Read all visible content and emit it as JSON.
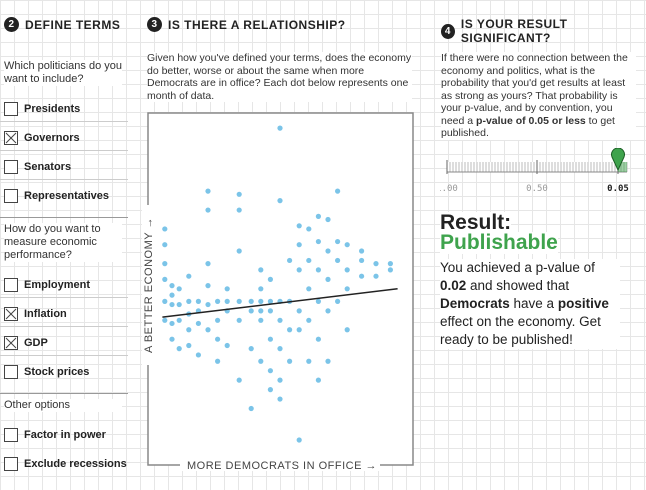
{
  "sections": [
    {
      "number": "2",
      "title": "DEFINE TERMS"
    },
    {
      "number": "3",
      "title": "IS THERE A RELATIONSHIP?"
    },
    {
      "number": "4",
      "title": "IS YOUR RESULT SIGNIFICANT?"
    }
  ],
  "define_terms": {
    "groups": [
      {
        "question": "Which politicians do you want to include?",
        "options": [
          {
            "label": "Presidents",
            "checked": false
          },
          {
            "label": "Governors",
            "checked": true
          },
          {
            "label": "Senators",
            "checked": false
          },
          {
            "label": "Representatives",
            "checked": false
          }
        ]
      },
      {
        "question": "How do you want to measure economic performance?",
        "options": [
          {
            "label": "Employment",
            "checked": false
          },
          {
            "label": "Inflation",
            "checked": true
          },
          {
            "label": "GDP",
            "checked": true
          },
          {
            "label": "Stock prices",
            "checked": false
          }
        ]
      },
      {
        "question": "Other options",
        "options": [
          {
            "label": "Factor in power",
            "checked": false
          },
          {
            "label": "Exclude recessions",
            "checked": false
          }
        ]
      }
    ]
  },
  "relationship": {
    "description": "Given how you've defined your terms, does the economy do better, worse or about the same when more Democrats are in office? Each dot below represents one month of data.",
    "chart": {
      "type": "scatter",
      "x_label": "MORE DEMOCRATS IN OFFICE →",
      "y_label": "A BETTER ECONOMY →",
      "color": "#4fb0e0",
      "line_color": "#222222",
      "xlim": [
        0,
        100
      ],
      "ylim": [
        0,
        100
      ],
      "columns": [
        {
          "x": 2,
          "y": [
            67,
            62,
            56,
            51,
            44,
            38
          ]
        },
        {
          "x": 5,
          "y": [
            49,
            46,
            43,
            37,
            32
          ]
        },
        {
          "x": 8,
          "y": [
            48,
            43,
            38,
            29
          ]
        },
        {
          "x": 12,
          "y": [
            52,
            44,
            40,
            35,
            30
          ]
        },
        {
          "x": 16,
          "y": [
            44,
            41,
            37,
            27
          ]
        },
        {
          "x": 20,
          "y": [
            79,
            73,
            56,
            49,
            43,
            35
          ]
        },
        {
          "x": 24,
          "y": [
            44,
            38,
            32,
            25
          ]
        },
        {
          "x": 28,
          "y": [
            48,
            44,
            41,
            30
          ]
        },
        {
          "x": 33,
          "y": [
            78,
            73,
            60,
            44,
            38,
            19
          ]
        },
        {
          "x": 38,
          "y": [
            44,
            41,
            29,
            10
          ]
        },
        {
          "x": 42,
          "y": [
            54,
            48,
            44,
            41,
            38,
            25
          ]
        },
        {
          "x": 46,
          "y": [
            51,
            44,
            41,
            32,
            22,
            16
          ]
        },
        {
          "x": 50,
          "y": [
            99,
            76,
            44,
            38,
            29,
            19,
            13
          ]
        },
        {
          "x": 54,
          "y": [
            57,
            44,
            35,
            25
          ]
        },
        {
          "x": 58,
          "y": [
            68,
            62,
            54,
            41,
            35,
            0
          ]
        },
        {
          "x": 62,
          "y": [
            67,
            57,
            48,
            38,
            25
          ]
        },
        {
          "x": 66,
          "y": [
            71,
            63,
            54,
            44,
            32,
            19
          ]
        },
        {
          "x": 70,
          "y": [
            70,
            60,
            51,
            41,
            25
          ]
        },
        {
          "x": 74,
          "y": [
            79,
            63,
            57,
            44
          ]
        },
        {
          "x": 78,
          "y": [
            62,
            54,
            48,
            35
          ]
        },
        {
          "x": 84,
          "y": [
            60,
            57,
            52
          ]
        },
        {
          "x": 90,
          "y": [
            56,
            52
          ]
        },
        {
          "x": 96,
          "y": [
            56,
            54
          ]
        }
      ],
      "trend": {
        "x": [
          1,
          99
        ],
        "y": [
          39,
          48
        ]
      }
    }
  },
  "significance": {
    "description": [
      {
        "text": "If there were no connection between the economy and politics, what is the probability that you'd get results at least as strong as yours? That probability is your p-value, and by convention, you need a ",
        "bold": false
      },
      {
        "text": "p-value of 0.05 or less",
        "bold": true
      },
      {
        "text": " to get published.",
        "bold": false
      }
    ],
    "slider": {
      "xlim": [
        1,
        0
      ],
      "xticks": [
        {
          "value": 1,
          "label": "1.00"
        },
        {
          "value": 0.5,
          "label": "0.50"
        },
        {
          "value": 0.05,
          "label": "0.05"
        }
      ],
      "value": 0.05,
      "color": "#3fa34d"
    },
    "result_label": "Result:",
    "result": "Publishable",
    "result_color": "#3fa34d",
    "summary": [
      {
        "text": "You achieved a p-value of ",
        "bold": false
      },
      {
        "text": "0.02",
        "bold": true
      },
      {
        "text": " and showed that ",
        "bold": false
      },
      {
        "text": "Democrats",
        "bold": true
      },
      {
        "text": " have a ",
        "bold": false
      },
      {
        "text": "positive",
        "bold": true
      },
      {
        "text": " effect on the economy. Get ready to be published!",
        "bold": false
      }
    ]
  }
}
